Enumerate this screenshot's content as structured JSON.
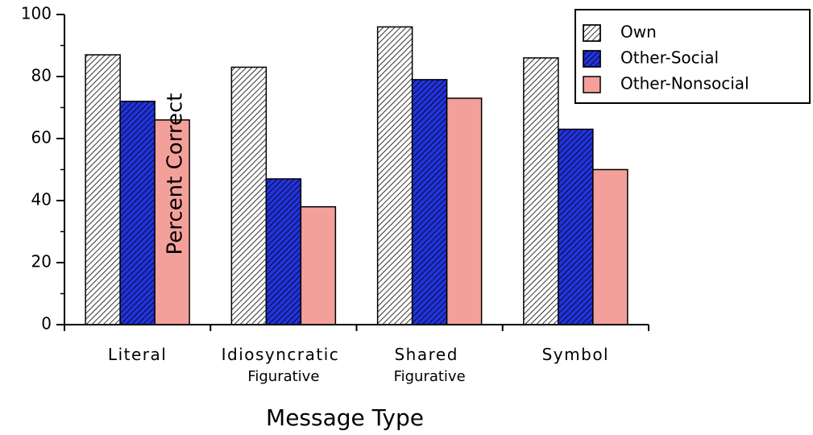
{
  "chart_data": {
    "type": "bar",
    "xlabel": "Message Type",
    "ylabel": "Percent Correct",
    "categories": [
      "Literal",
      "Idiosyncratic Figurative",
      "Shared Figurative",
      "Symbol"
    ],
    "series": [
      {
        "name": "Own",
        "color": "#ffffff",
        "hatched": true,
        "values": [
          87,
          83,
          96,
          86
        ]
      },
      {
        "name": "Other-Social",
        "color": "#2233dd",
        "hatched": true,
        "values": [
          72,
          47,
          79,
          63
        ]
      },
      {
        "name": "Other-Nonsocial",
        "color": "#f4a09a",
        "hatched": false,
        "values": [
          66,
          38,
          73,
          50
        ]
      }
    ],
    "ylim": [
      0,
      100
    ],
    "yticks": [
      0,
      20,
      40,
      60,
      80,
      100
    ],
    "legend": "upper right",
    "grid": false
  }
}
